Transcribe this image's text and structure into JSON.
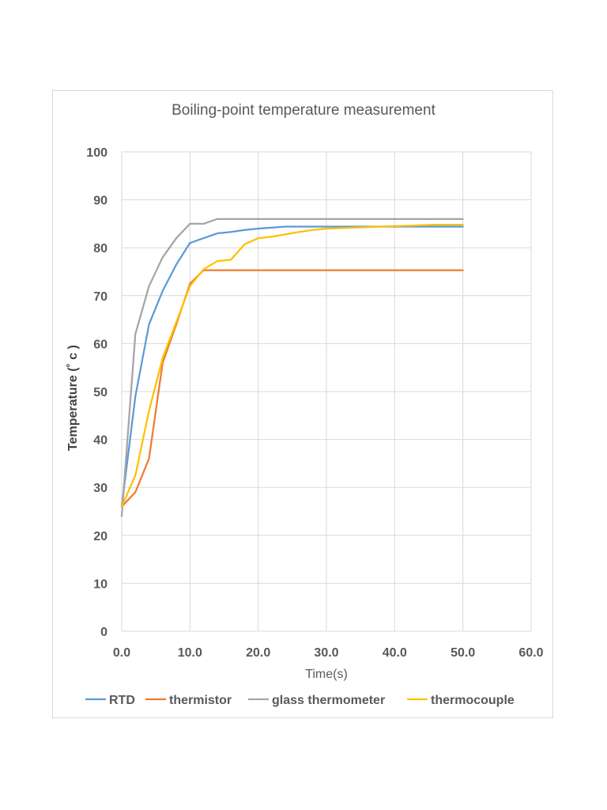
{
  "chart_data": {
    "type": "line",
    "title": "Boiling-point temperature measurement",
    "xlabel": "Time(s)",
    "ylabel": "Temperature (˚ c )",
    "xlim": [
      0,
      60
    ],
    "ylim": [
      0,
      100
    ],
    "x_ticks": [
      "0.0",
      "10.0",
      "20.0",
      "30.0",
      "40.0",
      "50.0",
      "60.0"
    ],
    "y_ticks": [
      "0",
      "10",
      "20",
      "30",
      "40",
      "50",
      "60",
      "70",
      "80",
      "90",
      "100"
    ],
    "x_tick_values": [
      0,
      10,
      20,
      30,
      40,
      50,
      60
    ],
    "y_tick_values": [
      0,
      10,
      20,
      30,
      40,
      50,
      60,
      70,
      80,
      90,
      100
    ],
    "grid": true,
    "legend_position": "bottom",
    "series": [
      {
        "name": "RTD",
        "color": "#5B9BD5",
        "x": [
          0,
          2,
          4,
          6,
          8,
          10,
          12,
          14,
          16,
          18,
          20,
          22,
          24,
          26,
          28,
          30,
          32,
          34,
          36,
          38,
          40,
          42,
          44,
          46,
          48,
          50
        ],
        "values": [
          26,
          49,
          64,
          71,
          76.5,
          81,
          82,
          83,
          83.3,
          83.7,
          84,
          84.2,
          84.4,
          84.4,
          84.4,
          84.4,
          84.4,
          84.4,
          84.4,
          84.4,
          84.4,
          84.4,
          84.4,
          84.4,
          84.4,
          84.4
        ]
      },
      {
        "name": "thermistor",
        "color": "#ED7D31",
        "x": [
          0,
          2,
          4,
          6,
          8,
          10,
          12,
          14,
          16,
          18,
          20,
          22,
          24,
          26,
          28,
          30,
          32,
          34,
          36,
          38,
          40,
          42,
          44,
          46,
          48,
          50
        ],
        "values": [
          26,
          29,
          36,
          56,
          64,
          72.5,
          75.3,
          75.3,
          75.3,
          75.3,
          75.3,
          75.3,
          75.3,
          75.3,
          75.3,
          75.3,
          75.3,
          75.3,
          75.3,
          75.3,
          75.3,
          75.3,
          75.3,
          75.3,
          75.3,
          75.3
        ]
      },
      {
        "name": "glass thermometer",
        "color": "#A5A5A5",
        "x": [
          0,
          2,
          4,
          6,
          8,
          10,
          12,
          14,
          16,
          18,
          20,
          22,
          24,
          26,
          28,
          30,
          32,
          34,
          36,
          38,
          40,
          42,
          44,
          46,
          48,
          50
        ],
        "values": [
          24,
          62,
          72,
          78,
          82,
          85,
          85,
          86,
          86,
          86,
          86,
          86,
          86,
          86,
          86,
          86,
          86,
          86,
          86,
          86,
          86,
          86,
          86,
          86,
          86,
          86
        ]
      },
      {
        "name": "thermocouple",
        "color": "#FFC000",
        "x": [
          0,
          2,
          4,
          6,
          8,
          10,
          12,
          14,
          16,
          18,
          20,
          22,
          24,
          26,
          28,
          30,
          32,
          34,
          36,
          38,
          40,
          42,
          44,
          46,
          48,
          50
        ],
        "values": [
          26,
          32.5,
          46,
          57,
          64.5,
          72,
          75.5,
          77.2,
          77.5,
          80.7,
          82,
          82.3,
          82.8,
          83.3,
          83.7,
          84,
          84.1,
          84.2,
          84.3,
          84.4,
          84.5,
          84.6,
          84.7,
          84.8,
          84.8,
          84.8
        ]
      }
    ]
  }
}
